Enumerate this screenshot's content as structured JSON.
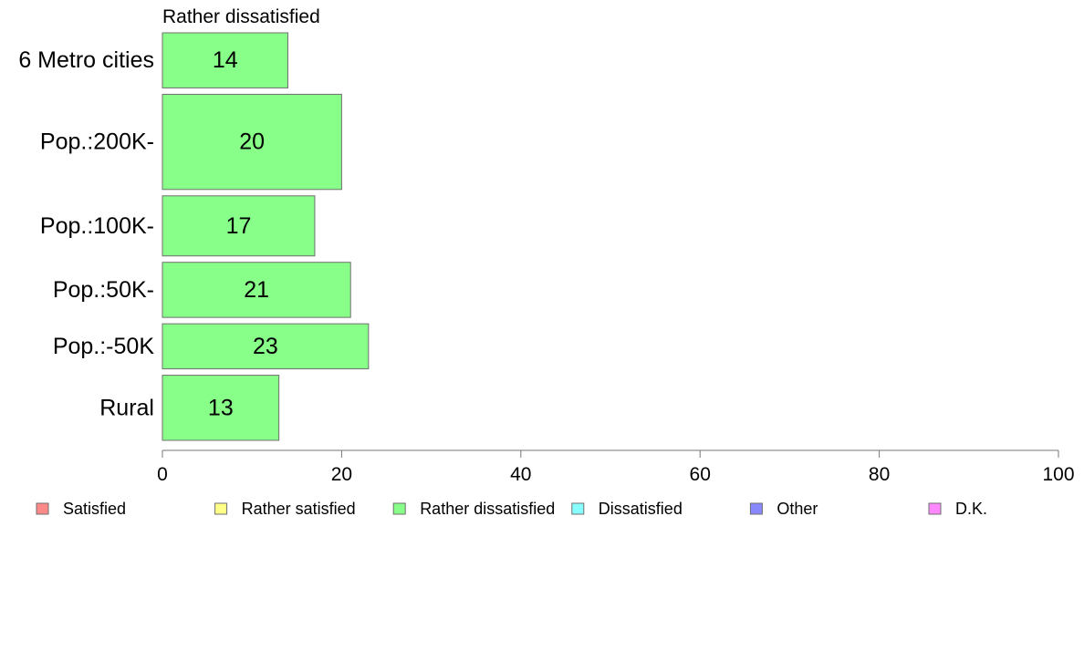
{
  "chart_data": {
    "type": "bar",
    "orientation": "horizontal",
    "title": "Rather dissatisfied",
    "categories": [
      "6 Metro cities",
      "Pop.:200K-",
      "Pop.:100K-",
      "Pop.:50K-",
      "Pop.:-50K",
      "Rural"
    ],
    "values": [
      14,
      20,
      17,
      21,
      23,
      13
    ],
    "relative_bar_widths": [
      0.11,
      0.19,
      0.12,
      0.11,
      0.09,
      0.13
    ],
    "bar_color": "#88ff88",
    "xlim": [
      0,
      100
    ],
    "xticks": [
      0,
      20,
      40,
      60,
      80,
      100
    ],
    "grid": false,
    "legend": {
      "position": "bottom",
      "items": [
        {
          "label": "Satisfied",
          "color": "#ff8888"
        },
        {
          "label": "Rather satisfied",
          "color": "#ffff88"
        },
        {
          "label": "Rather dissatisfied",
          "color": "#88ff88"
        },
        {
          "label": "Dissatisfied",
          "color": "#88ffff"
        },
        {
          "label": "Other",
          "color": "#8888ff"
        },
        {
          "label": "D.K.",
          "color": "#ff88ff"
        }
      ]
    }
  }
}
